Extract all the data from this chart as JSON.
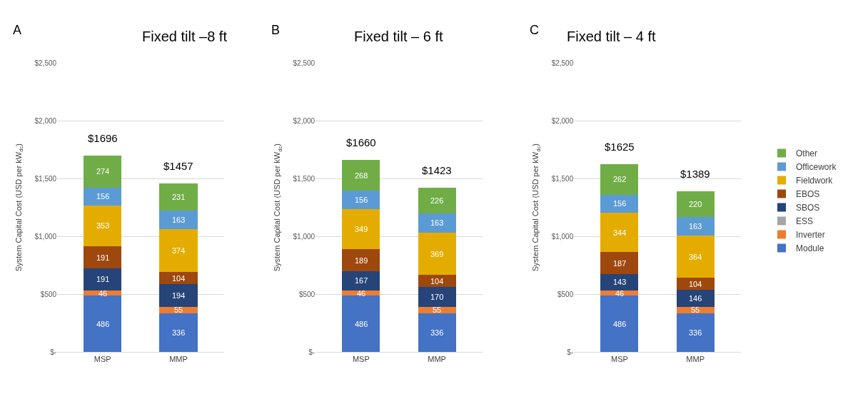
{
  "chart_data": [
    {
      "type": "bar",
      "title": "Fixed tilt –8 ft",
      "annotations": [
        "A"
      ],
      "ylabel": "System Capital Cost (USD per kW$_{dc}$)",
      "categories": [
        "MSP",
        "MMP"
      ],
      "stacked": true,
      "ylim": [
        0,
        2500
      ],
      "yticks": [
        {
          "value": 0,
          "label": "$-"
        },
        {
          "value": 500,
          "label": "$500"
        },
        {
          "value": 1000,
          "label": "$1,000"
        },
        {
          "value": 1500,
          "label": "$1,500"
        },
        {
          "value": 2000,
          "label": "$2,000"
        },
        {
          "value": 2500,
          "label": "$2,500"
        }
      ],
      "grid": "y",
      "legend": false,
      "totals": [
        "$1696",
        "$1457"
      ],
      "series": [
        {
          "color": "#4472c4",
          "values": [
            486,
            336
          ],
          "value_labels": [
            "486",
            "336"
          ]
        },
        {
          "color": "#ed7d31",
          "values": [
            46,
            55
          ],
          "value_labels": [
            "46",
            "55"
          ]
        },
        {
          "color": "#a5a5a5",
          "values": [
            0,
            0
          ],
          "value_labels": [
            null,
            null
          ]
        },
        {
          "color": "#264478",
          "values": [
            191,
            194
          ],
          "value_labels": [
            "191",
            "194"
          ]
        },
        {
          "color": "#9e480e",
          "values": [
            191,
            104
          ],
          "value_labels": [
            "191",
            "104"
          ]
        },
        {
          "color": "#e5ac00",
          "values": [
            353,
            374
          ],
          "value_labels": [
            "353",
            "374"
          ]
        },
        {
          "color": "#5b9bd5",
          "values": [
            156,
            163
          ],
          "value_labels": [
            "156",
            "163"
          ]
        },
        {
          "color": "#70ad47",
          "values": [
            274,
            231
          ],
          "value_labels": [
            "274",
            "231"
          ]
        }
      ]
    },
    {
      "type": "bar",
      "title": "Fixed tilt – 6 ft",
      "annotations": [
        "B"
      ],
      "ylabel": "System Capital Cost (USD per kW$_{dc}$)",
      "categories": [
        "MSP",
        "MMP"
      ],
      "stacked": true,
      "ylim": [
        0,
        2500
      ],
      "yticks": [
        {
          "value": 0,
          "label": "$-"
        },
        {
          "value": 500,
          "label": "$500"
        },
        {
          "value": 1000,
          "label": "$1,000"
        },
        {
          "value": 1500,
          "label": "$1,500"
        },
        {
          "value": 2000,
          "label": "$2,000"
        },
        {
          "value": 2500,
          "label": "$2,500"
        }
      ],
      "grid": "y",
      "legend": false,
      "totals": [
        "$1660",
        "$1423"
      ],
      "series": [
        {
          "color": "#4472c4",
          "values": [
            486,
            336
          ],
          "value_labels": [
            "486",
            "336"
          ]
        },
        {
          "color": "#ed7d31",
          "values": [
            46,
            55
          ],
          "value_labels": [
            "46",
            "55"
          ]
        },
        {
          "color": "#a5a5a5",
          "values": [
            0,
            0
          ],
          "value_labels": [
            null,
            null
          ]
        },
        {
          "color": "#264478",
          "values": [
            167,
            170
          ],
          "value_labels": [
            "167",
            "170"
          ]
        },
        {
          "color": "#9e480e",
          "values": [
            189,
            104
          ],
          "value_labels": [
            "189",
            "104"
          ]
        },
        {
          "color": "#e5ac00",
          "values": [
            349,
            369
          ],
          "value_labels": [
            "349",
            "369"
          ]
        },
        {
          "color": "#5b9bd5",
          "values": [
            156,
            163
          ],
          "value_labels": [
            "156",
            "163"
          ]
        },
        {
          "color": "#70ad47",
          "values": [
            268,
            226
          ],
          "value_labels": [
            "268",
            "226"
          ]
        }
      ]
    },
    {
      "type": "bar",
      "title": "Fixed tilt – 4 ft",
      "annotations": [
        "C"
      ],
      "ylabel": "System Capital Cost (USD per kW$_{dc}$)",
      "categories": [
        "MSP",
        "MMP"
      ],
      "stacked": true,
      "ylim": [
        0,
        2500
      ],
      "yticks": [
        {
          "value": 0,
          "label": "$-"
        },
        {
          "value": 500,
          "label": "$500"
        },
        {
          "value": 1000,
          "label": "$1,000"
        },
        {
          "value": 1500,
          "label": "$1,500"
        },
        {
          "value": 2000,
          "label": "$2,000"
        },
        {
          "value": 2500,
          "label": "$2,500"
        }
      ],
      "grid": "y",
      "legend": "right",
      "totals": [
        "$1625",
        "$1389"
      ],
      "series": [
        {
          "name": "Module",
          "color": "#4472c4",
          "values": [
            486,
            336
          ],
          "value_labels": [
            "486",
            "336"
          ]
        },
        {
          "name": "Inverter",
          "color": "#ed7d31",
          "values": [
            46,
            55
          ],
          "value_labels": [
            "46",
            "55"
          ]
        },
        {
          "name": "ESS",
          "color": "#a5a5a5",
          "values": [
            0,
            0
          ],
          "value_labels": [
            null,
            null
          ]
        },
        {
          "name": "SBOS",
          "color": "#264478",
          "values": [
            143,
            146
          ],
          "value_labels": [
            "143",
            "146"
          ]
        },
        {
          "name": "EBOS",
          "color": "#9e480e",
          "values": [
            187,
            104
          ],
          "value_labels": [
            "187",
            "104"
          ]
        },
        {
          "name": "Fieldwork",
          "color": "#e5ac00",
          "values": [
            344,
            364
          ],
          "value_labels": [
            "344",
            "364"
          ]
        },
        {
          "name": "Officework",
          "color": "#5b9bd5",
          "values": [
            156,
            163
          ],
          "value_labels": [
            "156",
            "163"
          ]
        },
        {
          "name": "Other",
          "color": "#70ad47",
          "values": [
            262,
            220
          ],
          "value_labels": [
            "262",
            "220"
          ]
        }
      ]
    }
  ]
}
